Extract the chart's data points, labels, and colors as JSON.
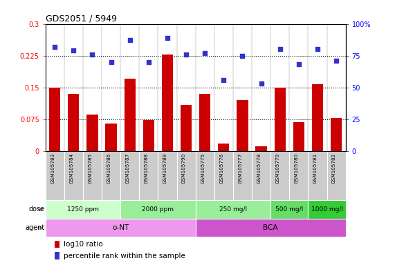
{
  "title": "GDS2051 / 5949",
  "samples": [
    "GSM105783",
    "GSM105784",
    "GSM105785",
    "GSM105786",
    "GSM105787",
    "GSM105788",
    "GSM105789",
    "GSM105790",
    "GSM105775",
    "GSM105776",
    "GSM105777",
    "GSM105778",
    "GSM105779",
    "GSM105780",
    "GSM105781",
    "GSM105782"
  ],
  "log10_ratio": [
    0.15,
    0.135,
    0.085,
    0.065,
    0.17,
    0.072,
    0.228,
    0.108,
    0.135,
    0.018,
    0.12,
    0.01,
    0.15,
    0.068,
    0.158,
    0.078
  ],
  "percentile": [
    82,
    79,
    76,
    70,
    87,
    70,
    89,
    76,
    77,
    56,
    75,
    53,
    80,
    68,
    80,
    71
  ],
  "bar_color": "#cc0000",
  "dot_color": "#3333cc",
  "ylim_left": [
    0,
    0.3
  ],
  "ylim_right": [
    0,
    100
  ],
  "yticks_left": [
    0,
    0.075,
    0.15,
    0.225,
    0.3
  ],
  "ytick_labels_left": [
    "0",
    "0.075",
    "0.15",
    "0.225",
    "0.3"
  ],
  "yticks_right": [
    0,
    25,
    50,
    75,
    100
  ],
  "ytick_labels_right": [
    "0",
    "25",
    "50",
    "75",
    "100%"
  ],
  "hlines": [
    0.075,
    0.15,
    0.225
  ],
  "dose_groups": [
    {
      "label": "1250 ppm",
      "start": 0,
      "end": 4,
      "color": "#ccffcc"
    },
    {
      "label": "2000 ppm",
      "start": 4,
      "end": 8,
      "color": "#99ee99"
    },
    {
      "label": "250 mg/l",
      "start": 8,
      "end": 12,
      "color": "#99ee99"
    },
    {
      "label": "500 mg/l",
      "start": 12,
      "end": 14,
      "color": "#66dd66"
    },
    {
      "label": "1000 mg/l",
      "start": 14,
      "end": 16,
      "color": "#33cc33"
    }
  ],
  "agent_groups": [
    {
      "label": "o-NT",
      "start": 0,
      "end": 8,
      "color": "#ee99ee"
    },
    {
      "label": "BCA",
      "start": 8,
      "end": 16,
      "color": "#cc55cc"
    }
  ],
  "dose_label": "dose",
  "agent_label": "agent",
  "sample_label_bg": "#cccccc",
  "background_color": "#ffffff",
  "arrow_color": "#888888"
}
